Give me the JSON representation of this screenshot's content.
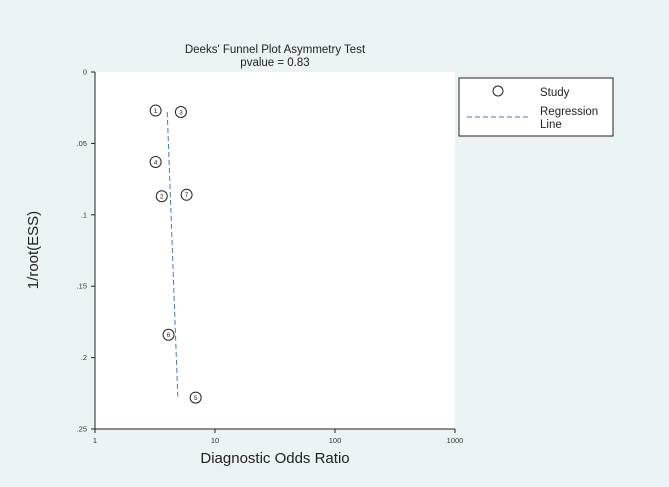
{
  "chart_data": {
    "type": "scatter",
    "title": "Deeks' Funnel Plot Asymmetry Test",
    "subtitle": "pvalue  =   0.83",
    "xlabel": "Diagnostic Odds Ratio",
    "ylabel": "1/root(ESS)",
    "x_scale": "log",
    "xlim": [
      1,
      1000
    ],
    "ylim": [
      0,
      0.25
    ],
    "y_reversed": true,
    "x_ticks": [
      1,
      10,
      100,
      1000
    ],
    "x_tick_labels": [
      "1",
      "10",
      "100",
      "1000"
    ],
    "y_ticks": [
      0,
      0.05,
      0.1,
      0.15,
      0.2,
      0.25
    ],
    "y_tick_labels": [
      "0",
      ".05",
      ".1",
      ".15",
      ".2",
      ".25"
    ],
    "grid": false,
    "legend_position": "right",
    "series": [
      {
        "name": "Study",
        "marker": "circle",
        "points": [
          {
            "label": "1",
            "x": 3.2,
            "y": 0.027
          },
          {
            "label": "3",
            "x": 5.2,
            "y": 0.028
          },
          {
            "label": "4",
            "x": 3.2,
            "y": 0.063
          },
          {
            "label": "7",
            "x": 5.8,
            "y": 0.086
          },
          {
            "label": "2",
            "x": 3.6,
            "y": 0.087
          },
          {
            "label": "6",
            "x": 4.1,
            "y": 0.184
          },
          {
            "label": "5",
            "x": 6.9,
            "y": 0.228
          }
        ]
      },
      {
        "name": "Regression Line",
        "style": "dashed",
        "color": "#4a78b5",
        "points": [
          {
            "x": 4.0,
            "y": 0.028
          },
          {
            "x": 4.9,
            "y": 0.228
          }
        ]
      }
    ],
    "legend": {
      "items": [
        {
          "label": "Study",
          "marker": "circle"
        },
        {
          "label": "Regression\nLine",
          "marker": "dashed-line"
        }
      ]
    },
    "colors": {
      "background": "#eaf2f3",
      "plot_area": "#ffffff",
      "axis": "#222222",
      "regression": "#4a78b5"
    }
  }
}
